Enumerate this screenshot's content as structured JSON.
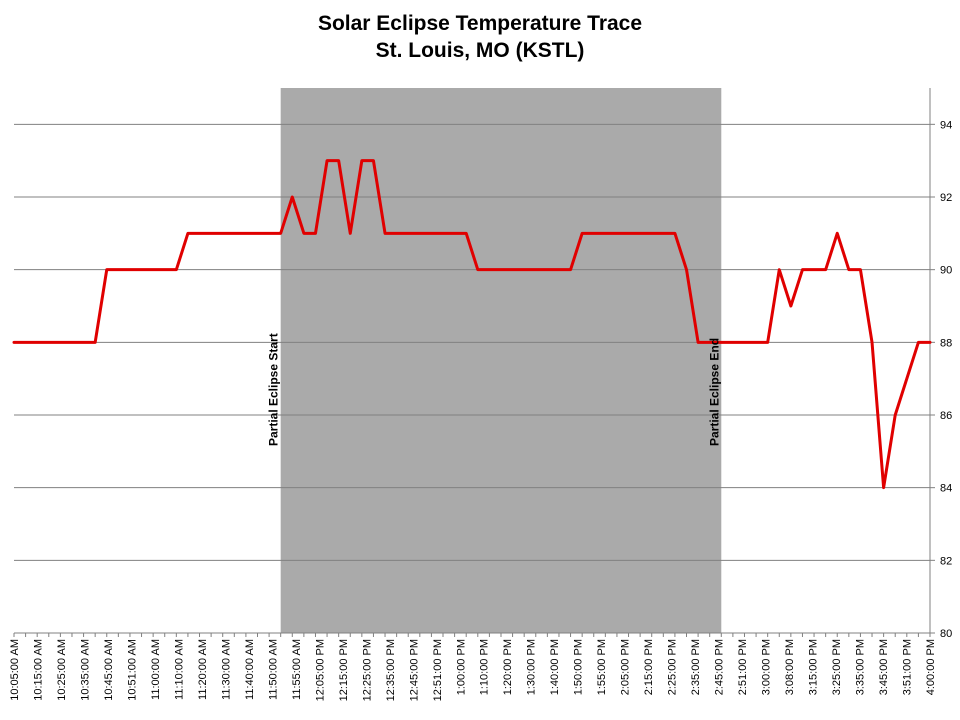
{
  "chart_data": {
    "type": "line",
    "title": "Solar Eclipse Temperature Trace",
    "subtitle": "St. Louis, MO (KSTL)",
    "xlabel": "",
    "ylabel": "",
    "ylim": [
      80,
      95
    ],
    "y_ticks": [
      80,
      82,
      84,
      86,
      88,
      90,
      92,
      94
    ],
    "y_axis_side": "right",
    "grid": "horizontal",
    "legend": "none",
    "line_color": "#e00000",
    "shade_color": "#aaaaaa",
    "shaded_region": {
      "label": "Partial Eclipse",
      "start_index": 23,
      "end_index": 61
    },
    "annotations": [
      {
        "text": "Partial Eclipse Start",
        "index": 23
      },
      {
        "text": "Partial Eclipse End",
        "index": 61
      }
    ],
    "x_tick_labels": [
      "10:05:00 AM",
      "10:15:00 AM",
      "10:25:00 AM",
      "10:35:00 AM",
      "10:45:00 AM",
      "10:51:00 AM",
      "11:00:00 AM",
      "11:10:00 AM",
      "11:20:00 AM",
      "11:30:00 AM",
      "11:40:00 AM",
      "11:50:00 AM",
      "11:55:00 AM",
      "12:05:00 PM",
      "12:15:00 PM",
      "12:25:00 PM",
      "12:35:00 PM",
      "12:45:00 PM",
      "12:51:00 PM",
      "1:00:00 PM",
      "1:10:00 PM",
      "1:20:00 PM",
      "1:30:00 PM",
      "1:40:00 PM",
      "1:50:00 PM",
      "1:55:00 PM",
      "2:05:00 PM",
      "2:15:00 PM",
      "2:25:00 PM",
      "2:35:00 PM",
      "2:45:00 PM",
      "2:51:00 PM",
      "3:00:00 PM",
      "3:08:00 PM",
      "3:15:00 PM",
      "3:25:00 PM",
      "3:35:00 PM",
      "3:45:00 PM",
      "3:51:00 PM",
      "4:00:00 PM"
    ],
    "series": [
      {
        "values": [
          88,
          88,
          88,
          88,
          88,
          88,
          88,
          88,
          90,
          90,
          90,
          90,
          90,
          90,
          90,
          91,
          91,
          91,
          91,
          91,
          91,
          91,
          91,
          91,
          92,
          91,
          91,
          93,
          93,
          91,
          93,
          93,
          91,
          91,
          91,
          91,
          91,
          91,
          91,
          91,
          90,
          90,
          90,
          90,
          90,
          90,
          90,
          90,
          90,
          91,
          91,
          91,
          91,
          91,
          91,
          91,
          91,
          91,
          90,
          88,
          88,
          88,
          88,
          88,
          88,
          88,
          90,
          89,
          90,
          90,
          90,
          91,
          90,
          90,
          88,
          84,
          86,
          87,
          88,
          88
        ]
      }
    ]
  }
}
